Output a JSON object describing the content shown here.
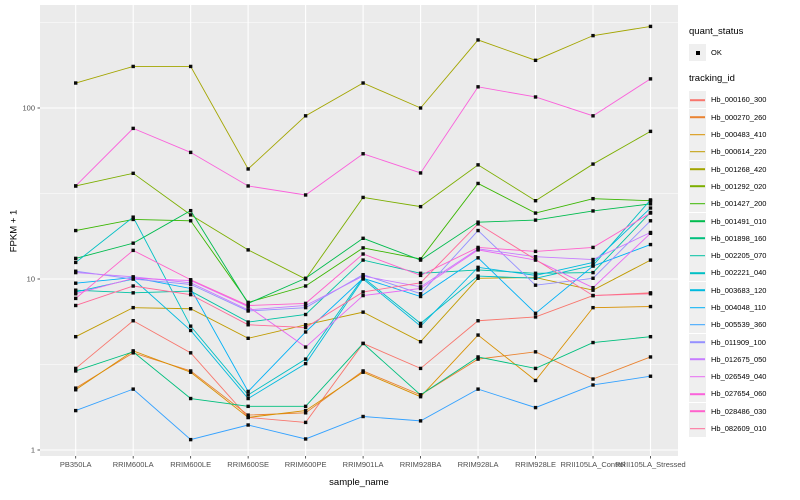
{
  "colors": {
    "panel_bg": "#EBEBEB",
    "grid": "#FFFFFF",
    "axis_text": "#4D4D4D",
    "tick_mark": "#333333",
    "title_text": "#000000",
    "legend_key_bg": "#EFEFEF",
    "marker": "#0A0A0A"
  },
  "legend": {
    "quant_status": {
      "title": "quant_status",
      "items": [
        {
          "label": "OK",
          "marker_color": "#000000"
        }
      ]
    },
    "tracking": {
      "title": "tracking_id"
    }
  },
  "chart_data": {
    "type": "line",
    "title": "",
    "xlabel": "sample_name",
    "ylabel": "FPKM + 1",
    "y_scale": "log10",
    "y_tick_values": [
      1,
      10,
      100
    ],
    "y_tick_labels": [
      "1",
      "10",
      "100"
    ],
    "y_minor_gridlines": [
      3.162,
      31.62,
      316.2
    ],
    "ylim": [
      0.92,
      400
    ],
    "grid": "white gridlines on gray panel",
    "legend_position": "right",
    "marker": "small black square at every point",
    "categories": [
      "PB350LA",
      "RRIM600LA",
      "RRIM600LE",
      "RRIM600SE",
      "RRIM600PE",
      "RRIM901LA",
      "RRIM928BA",
      "RRIM928LA",
      "RRIM928LE",
      "RRII105LA_Control",
      "RRII105LA_Stressed"
    ],
    "series": [
      {
        "name": "Hb_000160_300",
        "color": "#F8766D",
        "values": [
          3.0,
          5.7,
          3.7,
          1.55,
          1.45,
          4.2,
          3.0,
          5.7,
          6.0,
          8.0,
          8.3
        ]
      },
      {
        "name": "Hb_000270_260",
        "color": "#EA8331",
        "values": [
          2.3,
          3.7,
          2.9,
          1.6,
          1.65,
          2.9,
          2.1,
          3.4,
          3.75,
          2.6,
          3.5
        ]
      },
      {
        "name": "Hb_000483_410",
        "color": "#D89000",
        "values": [
          2.25,
          3.8,
          2.85,
          1.55,
          1.7,
          2.85,
          2.05,
          4.7,
          2.55,
          6.8,
          6.9
        ]
      },
      {
        "name": "Hb_000614_220",
        "color": "#C09B00",
        "values": [
          4.6,
          6.8,
          6.7,
          4.5,
          5.4,
          6.4,
          4.3,
          10.1,
          10.2,
          8.6,
          12.9
        ]
      },
      {
        "name": "Hb_001268_420",
        "color": "#A3A500",
        "values": [
          140,
          175,
          175,
          44,
          90,
          140,
          100,
          250,
          190,
          265,
          300
        ]
      },
      {
        "name": "Hb_001292_020",
        "color": "#7CAE00",
        "values": [
          35,
          41.5,
          23.7,
          14.8,
          10.0,
          30,
          26.5,
          46.5,
          28.7,
          47,
          73
        ]
      },
      {
        "name": "Hb_001427_200",
        "color": "#39B600",
        "values": [
          19.2,
          22.3,
          21.9,
          7.3,
          9.1,
          15.2,
          13.1,
          36.2,
          24.3,
          29.5,
          28.7
        ]
      },
      {
        "name": "Hb_001491_010",
        "color": "#00BB4E",
        "values": [
          13.2,
          16.2,
          25.1,
          7.2,
          10.1,
          17.3,
          12.9,
          21.5,
          22.1,
          25.0,
          27.5
        ]
      },
      {
        "name": "Hb_001898_160",
        "color": "#00BF7D",
        "values": [
          2.9,
          3.75,
          2.0,
          1.8,
          1.8,
          4.2,
          2.1,
          3.5,
          3.0,
          4.25,
          4.6
        ]
      },
      {
        "name": "Hb_002205_070",
        "color": "#00C1A3",
        "values": [
          8.6,
          8.3,
          8.5,
          5.6,
          6.2,
          12.9,
          10.8,
          11.3,
          10.8,
          10.9,
          24.5
        ]
      },
      {
        "name": "Hb_002221_040",
        "color": "#00BFC4",
        "values": [
          12.5,
          23.0,
          5.3,
          2.1,
          3.4,
          10.2,
          5.5,
          10.4,
          10.1,
          12.0,
          29.0
        ]
      },
      {
        "name": "Hb_003683_120",
        "color": "#00BADE",
        "values": [
          8.4,
          10.0,
          5.0,
          2.0,
          3.2,
          10.0,
          5.3,
          11.7,
          10.5,
          12.5,
          26.0
        ]
      },
      {
        "name": "Hb_004048_110",
        "color": "#00B0F6",
        "values": [
          9.45,
          10.2,
          8.8,
          2.2,
          4.9,
          10.1,
          7.9,
          13.3,
          6.3,
          11.9,
          15.9
        ]
      },
      {
        "name": "Hb_005539_360",
        "color": "#35A2FF",
        "values": [
          1.7,
          2.27,
          1.15,
          1.4,
          1.16,
          1.57,
          1.48,
          2.27,
          1.77,
          2.4,
          2.7
        ]
      },
      {
        "name": "Hb_011909_100",
        "color": "#9590FF",
        "values": [
          11.1,
          10.0,
          9.3,
          6.5,
          6.8,
          10.6,
          8.2,
          19.2,
          9.2,
          10.1,
          21.9
        ]
      },
      {
        "name": "Hb_012675_050",
        "color": "#C77CFF",
        "values": [
          10.9,
          10.3,
          9.5,
          6.6,
          7.0,
          10.4,
          9.0,
          15.0,
          13.5,
          13.0,
          18.7
        ]
      },
      {
        "name": "Hb_026549_040",
        "color": "#E76BF3",
        "values": [
          8.2,
          10.1,
          9.8,
          6.9,
          4.0,
          8.0,
          8.8,
          14.8,
          12.9,
          8.9,
          18.5
        ]
      },
      {
        "name": "Hb_027654_060",
        "color": "#FA62DB",
        "values": [
          35,
          76,
          55,
          35,
          31,
          54,
          41.7,
          133,
          116,
          90,
          148
        ]
      },
      {
        "name": "Hb_028486_030",
        "color": "#FF61CC",
        "values": [
          7.7,
          14.7,
          9.9,
          7.0,
          7.2,
          14.0,
          10.5,
          15.3,
          14.5,
          15.3,
          24.3
        ]
      },
      {
        "name": "Hb_082609_010",
        "color": "#FF6A98",
        "values": [
          7.0,
          9.1,
          8.1,
          5.4,
          5.2,
          8.4,
          9.5,
          21.0,
          13.0,
          8.0,
          8.2
        ]
      }
    ]
  }
}
